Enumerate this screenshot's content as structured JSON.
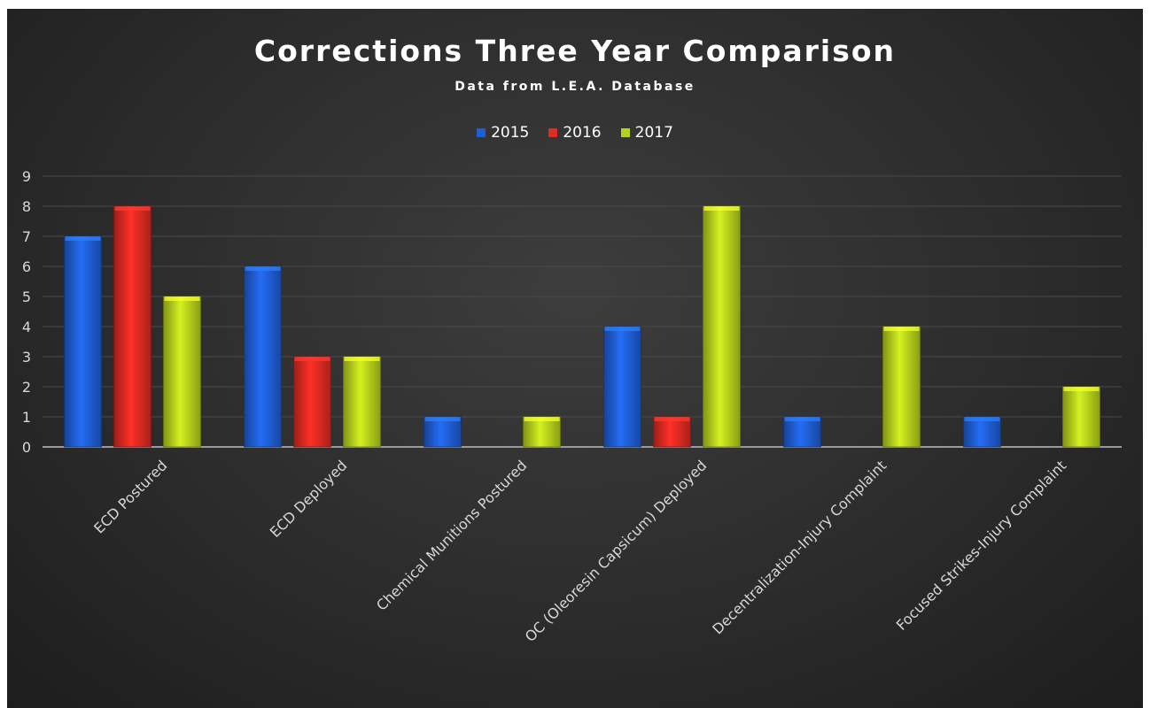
{
  "chart_data": {
    "type": "bar",
    "title": "Corrections Three Year Comparison",
    "subtitle": "Data from L.E.A. Database",
    "categories": [
      "ECD Postured",
      "ECD Deployed",
      "Chemical Munitions Postured",
      "OC (Oleoresin Capsicum) Deployed",
      "Decentralization-Injury Complaint",
      "Focused Strikes-Injury Complaint"
    ],
    "series": [
      {
        "name": "2015",
        "color": "#1f5fd6",
        "values": [
          7,
          6,
          1,
          4,
          1,
          1
        ]
      },
      {
        "name": "2016",
        "color": "#e02a22",
        "values": [
          8,
          3,
          0,
          1,
          0,
          0
        ]
      },
      {
        "name": "2017",
        "color": "#b8d21c",
        "values": [
          5,
          3,
          1,
          8,
          4,
          2
        ]
      }
    ],
    "yticks": [
      "0",
      "1",
      "2",
      "3",
      "4",
      "5",
      "6",
      "7",
      "8",
      "9"
    ],
    "ylim": [
      0,
      9
    ],
    "grid": true,
    "legend_position": "top-center"
  }
}
